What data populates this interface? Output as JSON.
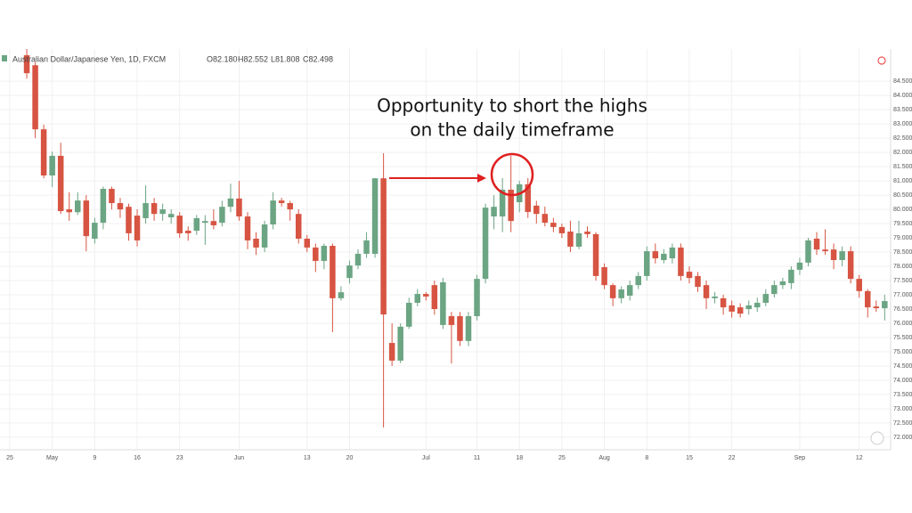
{
  "header": {
    "symbol": "Australian Dollar/Japanese Yen, 1D, FXCM",
    "open": "O82.180",
    "high": "H82.552",
    "low": "L81.808",
    "close": "C82.498"
  },
  "annotation": {
    "lines": [
      "Opportunity to short the highs",
      "on the daily timeframe"
    ]
  },
  "chart_data": {
    "type": "candlestick",
    "up_color": "#6ba583",
    "down_color": "#d75442",
    "grid": true,
    "open": [
      85.41,
      85.06,
      82.81,
      81.19,
      81.88,
      80.0,
      79.9,
      80.31,
      78.97,
      79.53,
      80.72,
      80.22,
      80.09,
      79.78,
      79.69,
      80.22,
      79.84,
      79.72,
      79.78,
      79.25,
      79.25,
      79.53,
      79.59,
      79.53,
      80.09,
      80.38,
      79.75,
      78.97,
      78.66,
      79.47,
      80.31,
      80.22,
      79.84,
      78.97,
      78.66,
      78.19,
      78.72,
      76.88,
      77.59,
      78.03,
      78.44,
      78.44,
      81.09,
      75.31,
      74.69,
      75.88,
      76.72,
      77.03,
      77.34,
      75.94,
      76.25,
      76.25,
      75.38,
      76.25,
      77.56,
      79.75,
      79.75,
      80.69,
      80.25,
      80.88,
      80.13,
      79.84,
      79.53,
      79.38,
      79.22,
      78.69,
      79.22,
      79.13,
      77.97,
      77.34,
      76.88,
      76.97,
      77.34,
      77.66,
      78.53,
      78.22,
      78.28,
      78.66,
      77.81,
      77.66,
      77.34,
      76.88,
      76.88,
      76.63,
      76.56,
      76.5,
      76.56,
      76.72,
      77.03,
      77.34,
      77.41,
      77.88,
      78.13,
      78.97,
      78.59,
      78.59,
      78.22,
      78.53,
      77.56,
      77.13,
      76.59,
      76.53
    ],
    "high": [
      85.63,
      85.16,
      82.97,
      82.03,
      82.34,
      80.6,
      80.6,
      80.5,
      79.7,
      80.8,
      80.8,
      80.4,
      80.2,
      80.0,
      80.84,
      80.4,
      80.2,
      80.0,
      79.9,
      79.4,
      79.8,
      79.8,
      80.0,
      80.3,
      80.9,
      81.0,
      79.9,
      79.2,
      79.6,
      80.6,
      80.4,
      80.3,
      80.0,
      79.1,
      78.8,
      78.8,
      78.8,
      77.3,
      78.2,
      78.6,
      79.2,
      81.1,
      81.97,
      76.0,
      76.0,
      76.9,
      77.2,
      77.1,
      77.5,
      77.6,
      76.4,
      76.4,
      76.4,
      77.7,
      80.2,
      80.5,
      81.1,
      81.88,
      81.0,
      81.1,
      80.3,
      80.1,
      79.7,
      79.5,
      79.6,
      79.6,
      79.4,
      79.2,
      78.1,
      77.4,
      77.3,
      77.5,
      77.8,
      78.7,
      78.8,
      78.6,
      78.8,
      78.8,
      78.0,
      77.8,
      77.5,
      77.1,
      77.0,
      76.8,
      76.7,
      76.8,
      76.9,
      77.2,
      77.5,
      77.6,
      78.0,
      78.3,
      79.0,
      79.2,
      79.3,
      78.8,
      78.7,
      78.7,
      77.7,
      77.2,
      76.8,
      77.0
    ],
    "low": [
      84.59,
      82.5,
      81.09,
      80.78,
      79.84,
      79.6,
      79.8,
      78.53,
      78.8,
      79.3,
      80.0,
      79.7,
      78.9,
      78.7,
      79.5,
      79.6,
      79.6,
      79.5,
      79.0,
      78.9,
      79.1,
      78.75,
      79.3,
      79.4,
      79.9,
      79.6,
      78.6,
      78.4,
      78.5,
      79.3,
      80.1,
      79.6,
      78.8,
      78.5,
      77.8,
      77.9,
      75.69,
      76.8,
      77.4,
      77.9,
      78.3,
      78.3,
      72.34,
      74.5,
      74.6,
      75.8,
      76.6,
      76.8,
      76.3,
      75.8,
      74.59,
      75.2,
      75.2,
      76.1,
      77.4,
      79.3,
      79.2,
      79.2,
      79.9,
      79.7,
      79.5,
      79.4,
      79.2,
      79.0,
      78.5,
      78.6,
      79.0,
      77.5,
      77.2,
      76.6,
      76.7,
      76.8,
      77.2,
      77.5,
      78.1,
      78.1,
      78.1,
      77.5,
      77.4,
      77.1,
      76.5,
      76.7,
      76.3,
      76.2,
      76.2,
      76.3,
      76.4,
      76.6,
      76.9,
      77.2,
      77.2,
      77.7,
      78.0,
      78.4,
      78.4,
      77.9,
      78.0,
      77.4,
      76.9,
      76.2,
      76.4,
      76.1
    ],
    "close": [
      84.78,
      82.81,
      81.19,
      81.88,
      79.94,
      79.9,
      80.31,
      79.06,
      79.53,
      80.72,
      80.22,
      80.0,
      79.16,
      78.91,
      80.22,
      79.84,
      80.0,
      79.84,
      79.16,
      79.16,
      79.69,
      79.59,
      79.44,
      80.09,
      80.38,
      79.75,
      78.91,
      78.66,
      79.47,
      80.31,
      80.22,
      80.0,
      78.97,
      78.66,
      78.19,
      78.72,
      76.88,
      77.09,
      78.03,
      78.44,
      78.91,
      81.09,
      76.31,
      74.69,
      75.88,
      76.72,
      77.03,
      76.94,
      76.5,
      77.44,
      75.94,
      75.38,
      76.25,
      77.56,
      80.06,
      80.09,
      80.69,
      79.59,
      80.88,
      79.91,
      79.84,
      79.53,
      79.38,
      79.16,
      78.69,
      79.16,
      79.13,
      77.66,
      77.34,
      76.88,
      77.19,
      77.34,
      77.66,
      78.53,
      78.28,
      78.44,
      78.66,
      77.66,
      77.59,
      77.28,
      76.88,
      76.94,
      76.56,
      76.41,
      76.34,
      76.63,
      76.72,
      77.03,
      77.34,
      77.47,
      77.88,
      78.13,
      78.91,
      78.59,
      78.53,
      78.22,
      78.53,
      77.56,
      77.13,
      76.56,
      76.53,
      76.78
    ],
    "xlim": [
      -3.15,
      101.7
    ],
    "xticks": [
      {
        "value": -2,
        "label": "25"
      },
      {
        "value": 3,
        "label": "May"
      },
      {
        "value": 8,
        "label": "9"
      },
      {
        "value": 13,
        "label": "16"
      },
      {
        "value": 18,
        "label": "23"
      },
      {
        "value": 25,
        "label": "Jun"
      },
      {
        "value": 33,
        "label": "13"
      },
      {
        "value": 38,
        "label": "20"
      },
      {
        "value": 47,
        "label": "Jul"
      },
      {
        "value": 53,
        "label": "11"
      },
      {
        "value": 58,
        "label": "18"
      },
      {
        "value": 63,
        "label": "25"
      },
      {
        "value": 68,
        "label": "Aug"
      },
      {
        "value": 73,
        "label": "8"
      },
      {
        "value": 78,
        "label": "15"
      },
      {
        "value": 83,
        "label": "22"
      },
      {
        "value": 91,
        "label": "Sep"
      },
      {
        "value": 98,
        "label": "12"
      }
    ],
    "ylim": [
      71.56,
      85.63
    ],
    "yticks": [
      {
        "value": 84.5,
        "label": "84.500"
      },
      {
        "value": 84.0,
        "label": "84.000"
      },
      {
        "value": 83.5,
        "label": "83.500"
      },
      {
        "value": 83.0,
        "label": "83.000"
      },
      {
        "value": 82.5,
        "label": "82.500"
      },
      {
        "value": 82.0,
        "label": "82.000"
      },
      {
        "value": 81.5,
        "label": "81.500"
      },
      {
        "value": 81.0,
        "label": "81.000"
      },
      {
        "value": 80.5,
        "label": "80.500"
      },
      {
        "value": 80.0,
        "label": "80.000"
      },
      {
        "value": 79.5,
        "label": "79.500"
      },
      {
        "value": 79.0,
        "label": "79.000"
      },
      {
        "value": 78.5,
        "label": "78.500"
      },
      {
        "value": 78.0,
        "label": "78.000"
      },
      {
        "value": 77.5,
        "label": "77.500"
      },
      {
        "value": 77.0,
        "label": "77.000"
      },
      {
        "value": 76.5,
        "label": "76.500"
      },
      {
        "value": 76.0,
        "label": "76.000"
      },
      {
        "value": 75.5,
        "label": "75.500"
      },
      {
        "value": 75.0,
        "label": "75.000"
      },
      {
        "value": 74.5,
        "label": "74.500"
      },
      {
        "value": 74.0,
        "label": "74.000"
      },
      {
        "value": 73.5,
        "label": "73.500"
      },
      {
        "value": 73.0,
        "label": "73.000"
      },
      {
        "value": 72.5,
        "label": "72.500"
      },
      {
        "value": 72.0,
        "label": "72.000"
      }
    ]
  }
}
